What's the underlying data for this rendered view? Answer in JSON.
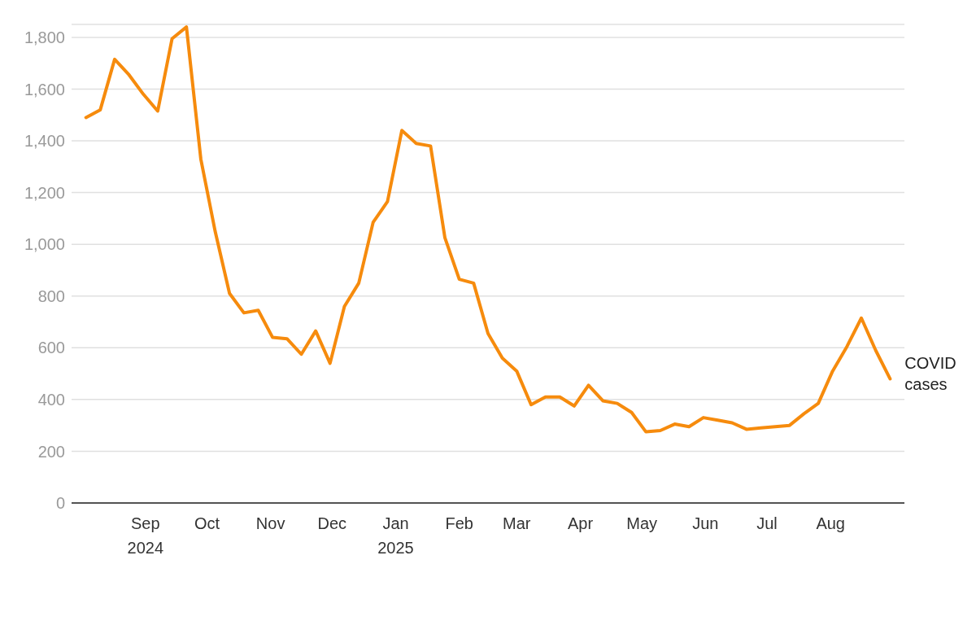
{
  "chart_data": {
    "type": "line",
    "x": [
      "2024-08-03",
      "2024-08-10",
      "2024-08-17",
      "2024-08-24",
      "2024-08-31",
      "2024-09-07",
      "2024-09-14",
      "2024-09-21",
      "2024-09-28",
      "2024-10-05",
      "2024-10-12",
      "2024-10-19",
      "2024-10-26",
      "2024-11-02",
      "2024-11-09",
      "2024-11-16",
      "2024-11-23",
      "2024-11-30",
      "2024-12-07",
      "2024-12-14",
      "2024-12-21",
      "2024-12-28",
      "2025-01-04",
      "2025-01-11",
      "2025-01-18",
      "2025-01-25",
      "2025-02-01",
      "2025-02-08",
      "2025-02-15",
      "2025-02-22",
      "2025-03-01",
      "2025-03-08",
      "2025-03-15",
      "2025-03-22",
      "2025-03-29",
      "2025-04-05",
      "2025-04-12",
      "2025-04-19",
      "2025-04-26",
      "2025-05-03",
      "2025-05-10",
      "2025-05-17",
      "2025-05-24",
      "2025-05-31",
      "2025-06-07",
      "2025-06-14",
      "2025-06-21",
      "2025-06-28",
      "2025-07-05",
      "2025-07-12",
      "2025-07-19",
      "2025-07-26",
      "2025-08-02",
      "2025-08-09",
      "2025-08-16",
      "2025-08-23",
      "2025-08-30"
    ],
    "series": [
      {
        "name": "COVID cases",
        "color": "#f68b0d",
        "values": [
          1490,
          1520,
          1715,
          1655,
          1580,
          1515,
          1795,
          1840,
          1330,
          1050,
          810,
          735,
          745,
          640,
          635,
          575,
          665,
          540,
          760,
          850,
          1085,
          1165,
          1440,
          1390,
          1380,
          1025,
          865,
          850,
          655,
          560,
          510,
          380,
          410,
          410,
          375,
          455,
          395,
          385,
          350,
          275,
          280,
          305,
          295,
          330,
          320,
          310,
          285,
          290,
          295,
          300,
          345,
          385,
          510,
          605,
          715,
          590,
          480
        ]
      }
    ],
    "xlim": [
      "2024-07-27",
      "2025-09-06"
    ],
    "xticks": [
      {
        "value": "2024-09-01",
        "label": "Sep\n2024"
      },
      {
        "value": "2024-10-01",
        "label": "Oct"
      },
      {
        "value": "2024-11-01",
        "label": "Nov"
      },
      {
        "value": "2024-12-01",
        "label": "Dec"
      },
      {
        "value": "2025-01-01",
        "label": "Jan\n2025"
      },
      {
        "value": "2025-02-01",
        "label": "Feb"
      },
      {
        "value": "2025-03-01",
        "label": "Mar"
      },
      {
        "value": "2025-04-01",
        "label": "Apr"
      },
      {
        "value": "2025-05-01",
        "label": "May"
      },
      {
        "value": "2025-06-01",
        "label": "Jun"
      },
      {
        "value": "2025-07-01",
        "label": "Jul"
      },
      {
        "value": "2025-08-01",
        "label": "Aug"
      }
    ],
    "ylim": [
      0,
      1850
    ],
    "yticks": [
      0,
      200,
      400,
      600,
      800,
      {
        "value": 1000,
        "label": "1,000"
      },
      {
        "value": 1200,
        "label": "1,200"
      },
      {
        "value": 1400,
        "label": "1,400"
      },
      {
        "value": 1600,
        "label": "1,600"
      },
      {
        "value": 1800,
        "label": "1,800"
      }
    ],
    "grid": "y",
    "marker": "none",
    "line_style": "solid"
  }
}
